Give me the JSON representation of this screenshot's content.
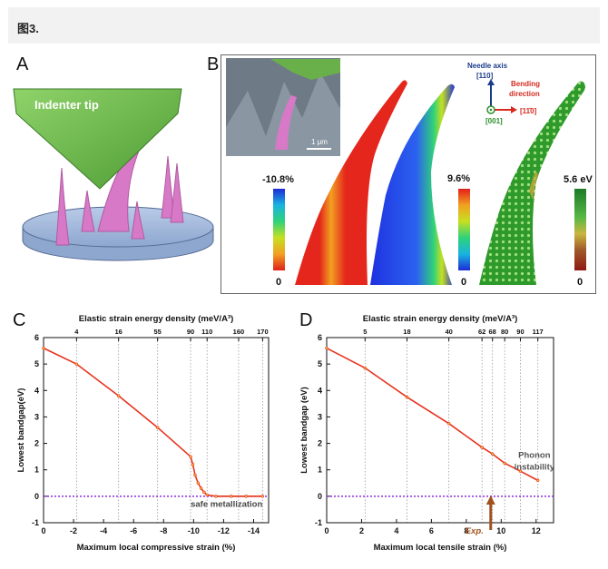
{
  "header": {
    "title": "图3."
  },
  "panel_a": {
    "letter": "A",
    "indenter_label": "Indenter tip"
  },
  "panel_b": {
    "letter": "B",
    "scale_bar": "1 μm",
    "scale1": {
      "max": "-10.8%",
      "min": "0"
    },
    "scale2": {
      "max": "9.6%",
      "min": "0"
    },
    "scale3": {
      "max": "5.6 eV",
      "min": "0"
    },
    "needle_axis": {
      "title": "Needle axis",
      "index": "[110]"
    },
    "bending": {
      "title_line1": "Bending",
      "title_line2": "direction",
      "index": "[11̄0]"
    },
    "normal_index": "[001]"
  },
  "chart_data": [
    {
      "type": "line",
      "panel": "C",
      "title": "",
      "xlabel": "Maximum local compressive strain (%)",
      "ylabel": "Lowest bandgap(eV)",
      "top_axis_label": "Elastic strain energy density (meV/A³)",
      "xlim": [
        0,
        -15
      ],
      "ylim": [
        -1,
        6
      ],
      "x_ticks": [
        0,
        -2,
        -4,
        -6,
        -8,
        -10,
        -12,
        -14
      ],
      "y_ticks": [
        -1,
        0,
        1,
        2,
        3,
        4,
        5,
        6
      ],
      "top_ticks": [
        {
          "x": -2.2,
          "label": "4"
        },
        {
          "x": -5.0,
          "label": "16"
        },
        {
          "x": -7.6,
          "label": "55"
        },
        {
          "x": -9.8,
          "label": "90"
        },
        {
          "x": -10.9,
          "label": "110"
        },
        {
          "x": -13.0,
          "label": "160"
        },
        {
          "x": -14.6,
          "label": "170"
        }
      ],
      "series": [
        {
          "name": "bandgap",
          "color": "#e8321e",
          "x": [
            0,
            -2.2,
            -5.0,
            -7.6,
            -9.8,
            -9.95,
            -10.1,
            -10.3,
            -10.5,
            -10.7,
            -10.9,
            -11.5,
            -12.5,
            -13.5,
            -14.6
          ],
          "y": [
            5.6,
            5.0,
            3.8,
            2.6,
            1.5,
            1.2,
            0.8,
            0.5,
            0.3,
            0.15,
            0.05,
            0.0,
            0.0,
            0.0,
            0.0
          ]
        }
      ],
      "reference_line": {
        "y": 0,
        "color": "#8a2be2"
      },
      "annotation": "safe metallization"
    },
    {
      "type": "line",
      "panel": "D",
      "title": "",
      "xlabel": "Maximum local tensile strain (%)",
      "ylabel": "Lowest bandgap (eV)",
      "top_axis_label": "Elastic strain energy density (meV/A³)",
      "xlim": [
        0,
        13
      ],
      "ylim": [
        -1,
        6
      ],
      "x_ticks": [
        0,
        2,
        4,
        6,
        8,
        10,
        12
      ],
      "y_ticks": [
        -1,
        0,
        1,
        2,
        3,
        4,
        5,
        6
      ],
      "top_ticks": [
        {
          "x": 2.2,
          "label": "5"
        },
        {
          "x": 4.6,
          "label": "18"
        },
        {
          "x": 7.0,
          "label": "40"
        },
        {
          "x": 8.9,
          "label": "62"
        },
        {
          "x": 9.5,
          "label": "68"
        },
        {
          "x": 10.2,
          "label": "80"
        },
        {
          "x": 11.1,
          "label": "90"
        },
        {
          "x": 12.1,
          "label": "117"
        }
      ],
      "series": [
        {
          "name": "bandgap",
          "color": "#e8321e",
          "x": [
            0,
            2.2,
            4.6,
            7.0,
            8.9,
            9.5,
            10.2,
            11.1,
            12.1
          ],
          "y": [
            5.6,
            4.85,
            3.75,
            2.75,
            1.85,
            1.6,
            1.25,
            0.95,
            0.6
          ]
        }
      ],
      "reference_line": {
        "y": 0,
        "color": "#8a2be2"
      },
      "annotation": "Phonon instability",
      "exp_marker": {
        "x": 9.4,
        "label": "Exp."
      }
    }
  ],
  "colors": {
    "red_line": "#e8321e",
    "zero_line": "#8a2be2",
    "exp_arrow": "#a0521e"
  }
}
